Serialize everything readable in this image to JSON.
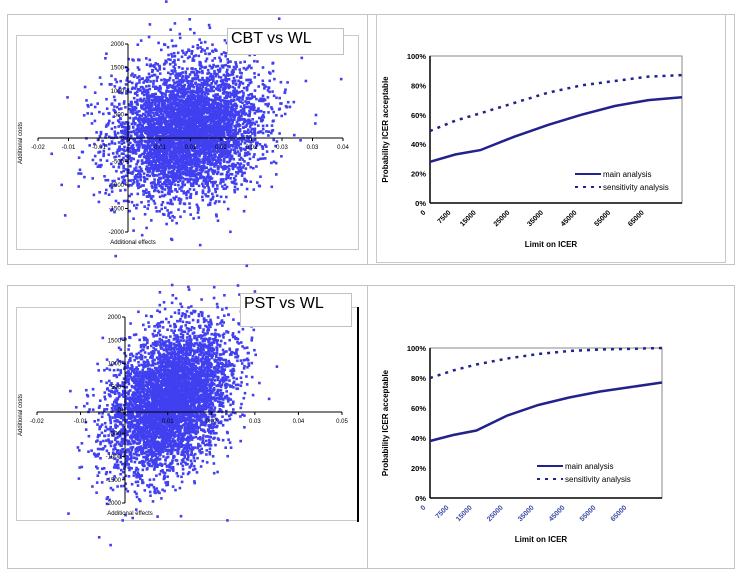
{
  "chart_data": [
    {
      "type": "scatter",
      "title": "CBT vs WL",
      "xlabel": "Additional effects",
      "ylabel": "Additional costs",
      "x_tick_labels": [
        "-0.02",
        "-0.01",
        "-0.01",
        "0",
        "0.01",
        "0.01",
        "0.02",
        "0.02",
        "0.03",
        "0.03",
        "0.04"
      ],
      "y_tick_labels": [
        "2000",
        "1500",
        "1000",
        "500",
        "0",
        "-500",
        "-1000",
        "-1500",
        "-2000"
      ],
      "ylim": [
        -2000,
        2000
      ],
      "xlim": [
        -0.02,
        0.04
      ],
      "point_color": "#4040f0",
      "description_of_cloud": "dense cluster centred near x 0.01, y 100"
    },
    {
      "type": "line",
      "xlabel": "Limit on ICER",
      "ylabel": "Probability ICER acceptable",
      "x_tick_labels": [
        "0",
        "7500",
        "15000",
        "25000",
        "35000",
        "45000",
        "55000",
        "65000"
      ],
      "y_tick_labels": [
        "0%",
        "20%",
        "40%",
        "60%",
        "80%",
        "100%"
      ],
      "ylim": [
        0,
        100
      ],
      "xlim": [
        0,
        75000
      ],
      "x": [
        0,
        7500,
        15000,
        25000,
        35000,
        45000,
        55000,
        65000,
        75000
      ],
      "series": [
        {
          "name": "main analysis",
          "style": "solid",
          "values": [
            28,
            33,
            36,
            45,
            53,
            60,
            66,
            70,
            72
          ]
        },
        {
          "name": "sensitivity analysis",
          "style": "dashed",
          "values": [
            49,
            56,
            61,
            68,
            75,
            80,
            83,
            86,
            87
          ]
        }
      ],
      "legend": "bottom-right",
      "line_color": "#22228c"
    },
    {
      "type": "scatter",
      "title": "PST vs WL",
      "xlabel": "Additional effects",
      "ylabel": "Additional costs",
      "x_tick_labels": [
        "-0.02",
        "-0.01",
        "0",
        "0.01",
        "0.02",
        "0.03",
        "0.04",
        "0.05"
      ],
      "y_tick_labels": [
        "2000",
        "1500",
        "1000",
        "500",
        "0",
        "-500",
        "-1000",
        "-1500",
        "-2000"
      ],
      "ylim": [
        -2000,
        2000
      ],
      "xlim": [
        -0.02,
        0.05
      ],
      "point_color": "#4040f0",
      "description_of_cloud": "dense cluster centred near x 0.01, y 100, negative correlation"
    },
    {
      "type": "line",
      "xlabel": "Limit on ICER",
      "ylabel": "Probability ICER acceptable",
      "x_tick_labels": [
        "0",
        "7500",
        "15000",
        "25000",
        "35000",
        "45000",
        "55000",
        "65000"
      ],
      "y_tick_labels": [
        "0%",
        "20%",
        "40%",
        "60%",
        "80%",
        "100%"
      ],
      "ylim": [
        0,
        100
      ],
      "xlim": [
        0,
        75000
      ],
      "x": [
        0,
        7500,
        15000,
        25000,
        35000,
        45000,
        55000,
        65000,
        75000
      ],
      "series": [
        {
          "name": "main analysis",
          "style": "solid",
          "values": [
            38,
            42,
            45,
            55,
            62,
            67,
            71,
            74,
            77
          ]
        },
        {
          "name": "sensitivity analysis",
          "style": "dashed",
          "values": [
            80,
            85,
            89,
            93,
            96,
            98,
            99,
            99.5,
            100
          ]
        }
      ],
      "legend": "bottom-right",
      "line_color": "#22228c"
    }
  ]
}
